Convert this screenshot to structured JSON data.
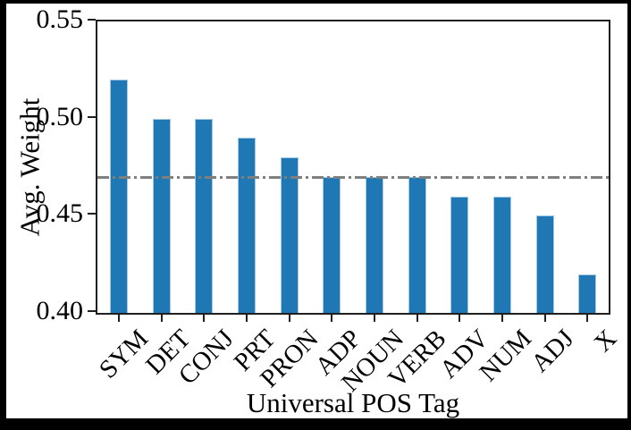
{
  "chart_data": {
    "type": "bar",
    "title": "",
    "xlabel": "Universal POS Tag",
    "ylabel": "Avg. Weight",
    "categories": [
      "SYM",
      "DET",
      "CONJ",
      "PRT",
      "PRON",
      "ADP",
      "NOUN",
      "VERB",
      "ADV",
      "NUM",
      "ADJ",
      "X"
    ],
    "values": [
      0.52,
      0.5,
      0.5,
      0.49,
      0.48,
      0.47,
      0.47,
      0.47,
      0.46,
      0.46,
      0.45,
      0.42
    ],
    "ylim": [
      0.4,
      0.55
    ],
    "yticks": [
      0.55,
      0.5,
      0.45,
      0.4
    ],
    "ytick_labels": [
      "0.55",
      "0.50",
      "0.45",
      "0.40"
    ],
    "xtick_rotation_deg": 45,
    "grid": false,
    "legend": null,
    "reference_line": {
      "value": 0.47,
      "style": "dash-dot",
      "color": "#7f7f7f"
    },
    "colors": {
      "bar_fill": "#1f77b4",
      "bar_edge": "#a3c8e3",
      "axis": "#1f1f1f",
      "text": "#000000",
      "figure_bg": "#ffffff",
      "outer_bg": "#000000"
    }
  }
}
